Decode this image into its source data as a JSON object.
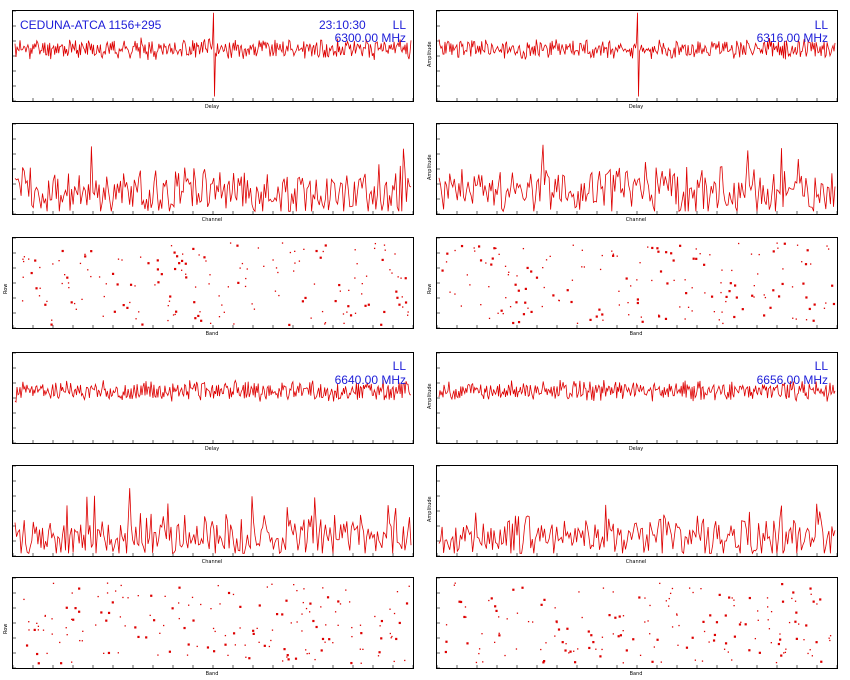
{
  "header": {
    "source_name": "CEDUNA-ATCA 1156+295",
    "time": "23:10:30",
    "polarization_labels": [
      "LL",
      "LL",
      "LL",
      "LL"
    ],
    "frequencies": [
      "6300.00 MHz",
      "6316.00 MHz",
      "6640.00 MHz",
      "6656.00 MHz"
    ]
  },
  "colors": {
    "trace": "#dd0000",
    "header_text": "#1c1cd8",
    "axes": "#000000"
  },
  "axis_labels": {
    "delay": "Delay",
    "channel": "Channel",
    "amplitude": "Amplitude",
    "row": "Row",
    "band": "Band"
  },
  "chart_data": [
    {
      "id": "if1-delay",
      "type": "line",
      "xlabel": "Delay",
      "ylabel": "",
      "spike": true,
      "points": 400,
      "level": 0.58,
      "noise": 0.09,
      "seed": 11
    },
    {
      "id": "if2-delay",
      "type": "line",
      "xlabel": "Delay",
      "ylabel": "Amplitude",
      "spike": true,
      "points": 400,
      "level": 0.58,
      "noise": 0.09,
      "seed": 23
    },
    {
      "id": "if1-channel",
      "type": "line",
      "xlabel": "Channel",
      "ylabel": "",
      "spike": false,
      "points": 260,
      "level": 0.25,
      "noise": 0.22,
      "seed": 37
    },
    {
      "id": "if2-channel",
      "type": "line",
      "xlabel": "Channel",
      "ylabel": "Amplitude",
      "spike": false,
      "points": 260,
      "level": 0.25,
      "noise": 0.22,
      "seed": 41
    },
    {
      "id": "if1-scatter",
      "type": "scatter",
      "xlabel": "Band",
      "ylabel": "Row",
      "points": 170,
      "seed": 53
    },
    {
      "id": "if2-scatter",
      "type": "scatter",
      "xlabel": "Band",
      "ylabel": "Row",
      "points": 170,
      "seed": 67
    },
    {
      "id": "if3-delay",
      "type": "line",
      "xlabel": "Delay",
      "ylabel": "",
      "spike": false,
      "points": 400,
      "level": 0.58,
      "noise": 0.09,
      "seed": 71
    },
    {
      "id": "if4-delay",
      "type": "line",
      "xlabel": "Delay",
      "ylabel": "Amplitude",
      "spike": false,
      "points": 400,
      "level": 0.58,
      "noise": 0.09,
      "seed": 83
    },
    {
      "id": "if3-channel",
      "type": "line",
      "xlabel": "Channel",
      "ylabel": "",
      "spike": false,
      "points": 260,
      "level": 0.22,
      "noise": 0.2,
      "seed": 97
    },
    {
      "id": "if4-channel",
      "type": "line",
      "xlabel": "Channel",
      "ylabel": "Amplitude",
      "spike": false,
      "points": 260,
      "level": 0.22,
      "noise": 0.2,
      "seed": 101
    },
    {
      "id": "if3-scatter",
      "type": "scatter",
      "xlabel": "Band",
      "ylabel": "Row",
      "points": 170,
      "seed": 109
    },
    {
      "id": "if4-scatter",
      "type": "scatter",
      "xlabel": "Band",
      "ylabel": "",
      "points": 170,
      "seed": 113
    }
  ]
}
